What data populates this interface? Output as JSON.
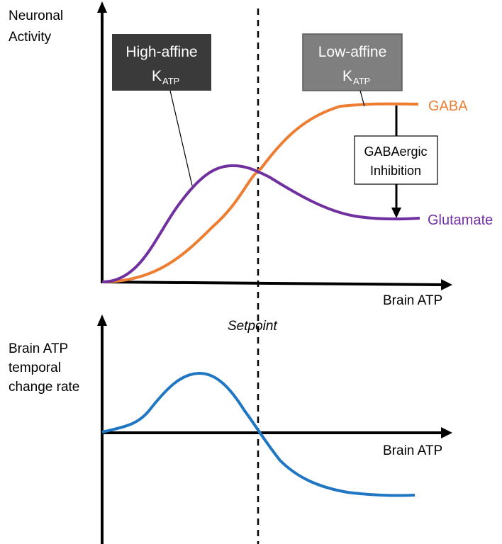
{
  "top_panel": {
    "y_label": [
      "Neuronal",
      "Activity"
    ],
    "x_label": "Brain ATP",
    "high_affine_box": {
      "line1": "High-affine",
      "k": "K",
      "k_sub": "ATP",
      "fill": "#3a3a3a"
    },
    "low_affine_box": {
      "line1": "Low-affine",
      "k": "K",
      "k_sub": "ATP",
      "fill": "#7f7f7f"
    },
    "inhibition_box": {
      "line1": "GABAergic",
      "line2": "Inhibition"
    },
    "series": [
      {
        "name": "GABA",
        "color": "#ed7d31"
      },
      {
        "name": "Glutamate",
        "color": "#7030a0"
      }
    ]
  },
  "setpoint_label": "Setpoint",
  "bottom_panel": {
    "y_label": [
      "Brain ATP",
      "temporal",
      "change rate"
    ],
    "x_label": "Brain ATP",
    "curve_color": "#1f77c4"
  }
}
